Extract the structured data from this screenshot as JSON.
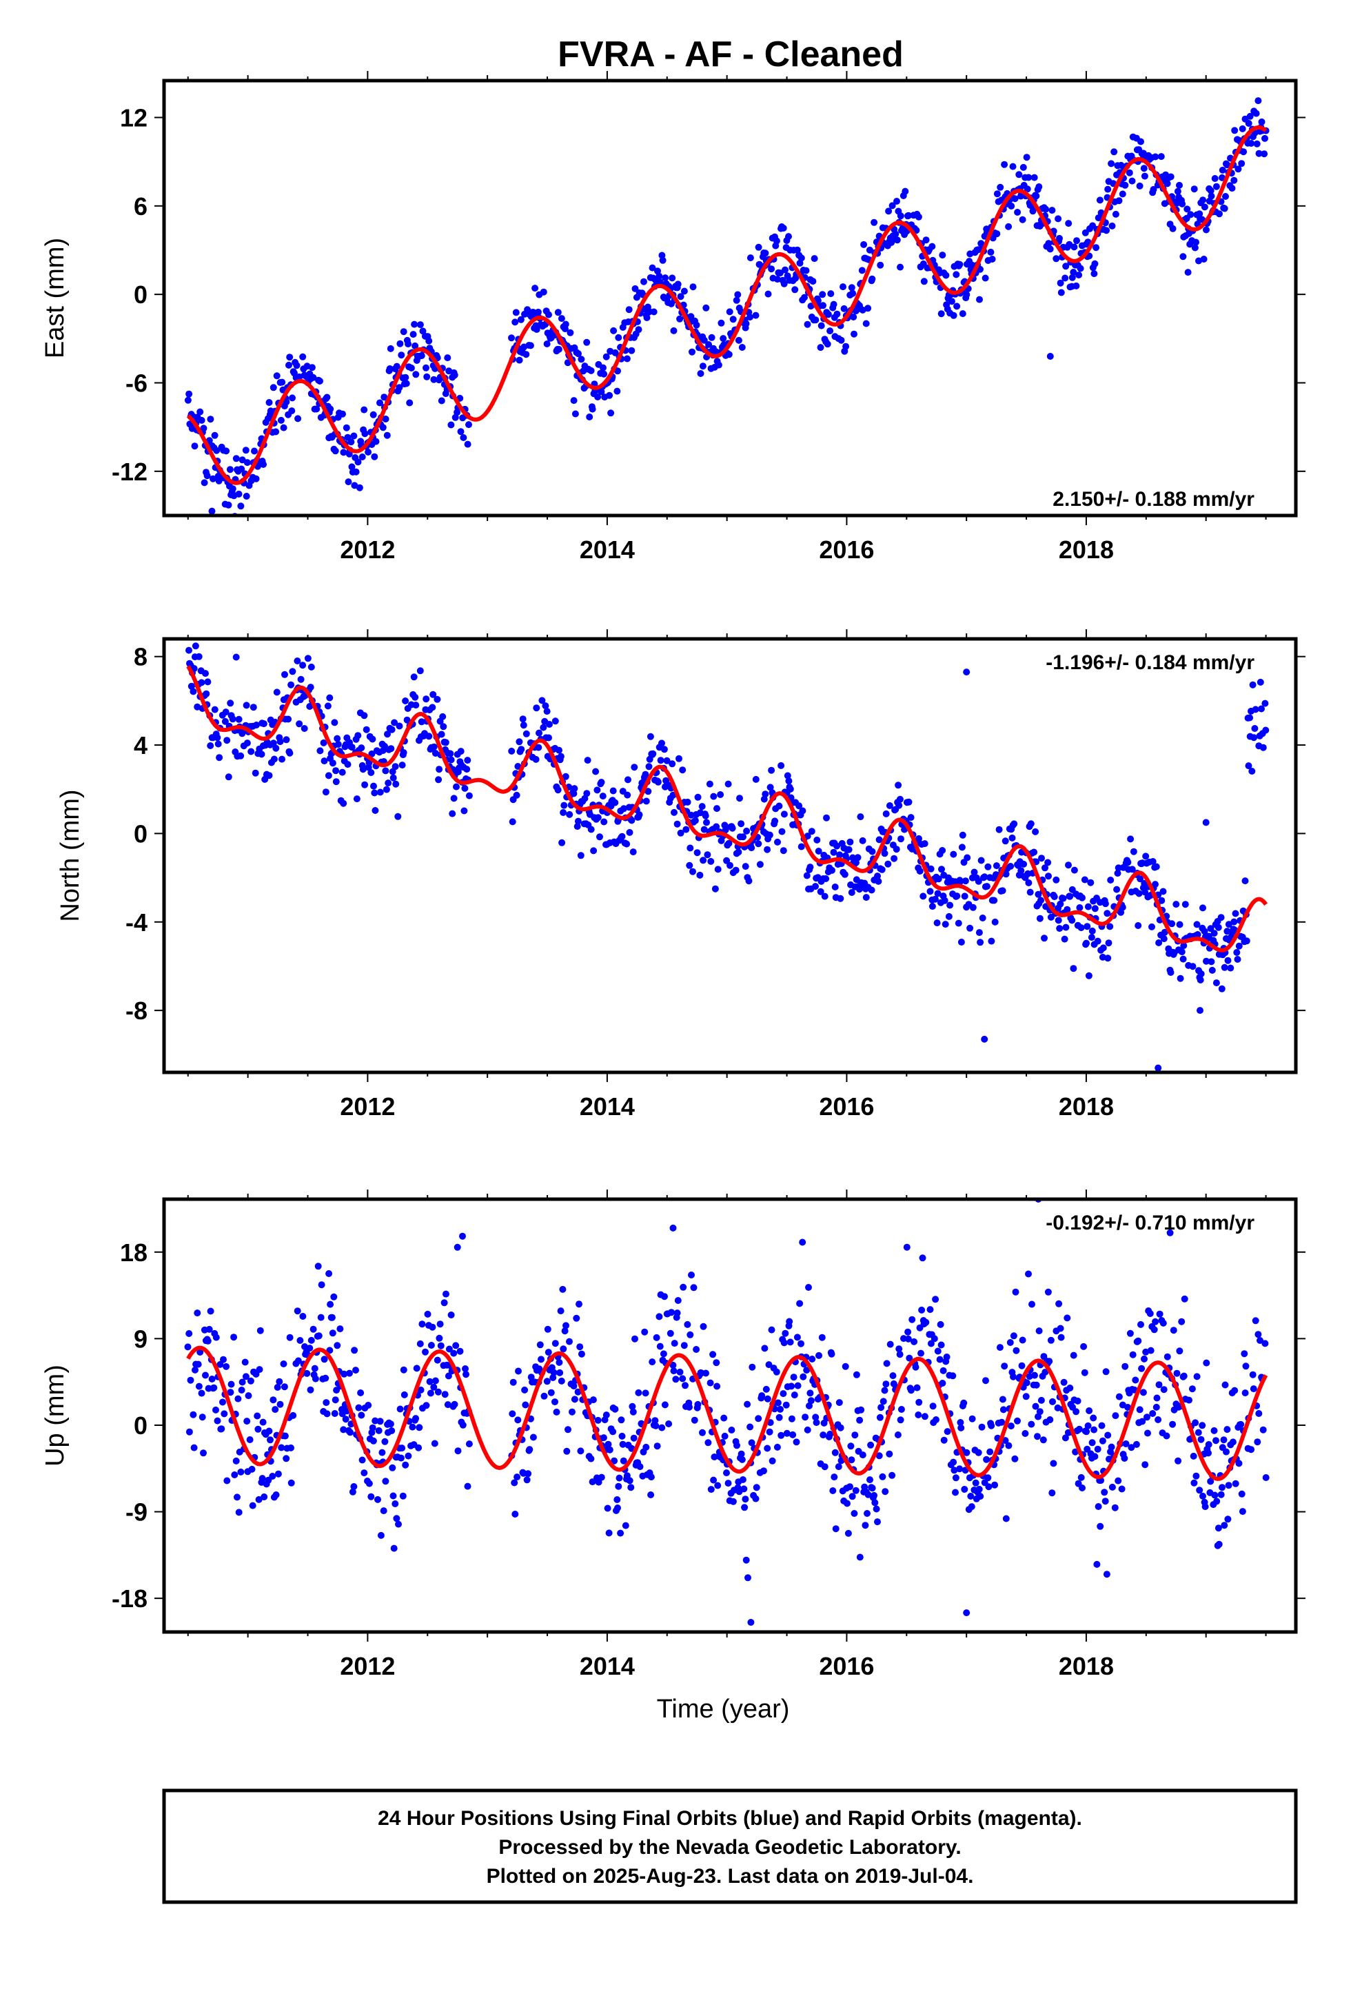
{
  "title": "FVRA  - AF - Cleaned",
  "colors": {
    "points": "#0000ff",
    "fit": "#ff0000",
    "frame": "#000000"
  },
  "chart_data": [
    {
      "type": "scatter",
      "ylabel": "East (mm)",
      "xlabel": "",
      "xlim": [
        2010.3,
        2019.75
      ],
      "ylim": [
        -15,
        14.5
      ],
      "xticks": [
        "2012",
        "2014",
        "2016",
        "2018"
      ],
      "yticks": [
        "12",
        "6",
        "0",
        "-6",
        "-12"
      ],
      "ytick_values": [
        12,
        6,
        0,
        -6,
        -12
      ],
      "rate": "2.150+/- 0.188 mm/yr",
      "rate_position": "bottom-right",
      "series": [
        {
          "name": "Final Orbits",
          "kind": "points",
          "trend": {
            "slope": 2.15,
            "offset": -1.1,
            "amplitude": 2.9,
            "peak_phase": 0.42
          },
          "x_range": [
            2010.5,
            2019.5
          ],
          "scatter_sd": 1.1,
          "count": 1250
        },
        {
          "name": "fit",
          "kind": "line",
          "trend": {
            "slope": 2.15,
            "offset": -1.1,
            "amplitude": 2.9,
            "peak_phase": 0.42
          },
          "x_range": [
            2010.5,
            2019.5
          ]
        }
      ],
      "gaps": [
        [
          2012.85,
          2013.2
        ]
      ],
      "outliers": [
        [
          2010.7,
          -14.7
        ],
        [
          2017.7,
          -4.2
        ],
        [
          2018.85,
          1.5
        ]
      ]
    },
    {
      "type": "scatter",
      "ylabel": "North (mm)",
      "xlabel": "",
      "xlim": [
        2010.3,
        2019.75
      ],
      "ylim": [
        -10.8,
        8.8
      ],
      "xticks": [
        "2012",
        "2014",
        "2016",
        "2018"
      ],
      "yticks": [
        "8",
        "4",
        "0",
        "-4",
        "-8"
      ],
      "ytick_values": [
        8,
        4,
        0,
        -4,
        -8
      ],
      "rate": "-1.196+/- 0.184 mm/yr",
      "rate_position": "top-right",
      "series": [
        {
          "name": "Final Orbits",
          "kind": "points",
          "trend": {
            "slope": -1.196,
            "offset": 0.55,
            "amplitude": 1.2,
            "peak_phase": 0.45,
            "semiannual": 0.6
          },
          "x_range": [
            2010.5,
            2019.5
          ],
          "scatter_sd": 0.95,
          "count": 1250
        },
        {
          "name": "fit",
          "kind": "line",
          "trend": {
            "slope": -1.196,
            "offset": 0.55,
            "amplitude": 1.2,
            "peak_phase": 0.45,
            "semiannual": 0.6
          },
          "x_range": [
            2010.5,
            2019.5
          ]
        }
      ],
      "gaps": [
        [
          2012.85,
          2013.2
        ]
      ],
      "outliers": [
        [
          2017.0,
          7.3
        ],
        [
          2017.15,
          -9.3
        ],
        [
          2018.6,
          -10.6
        ],
        [
          2019.0,
          0.5
        ],
        [
          2018.95,
          -8.0
        ]
      ]
    },
    {
      "type": "scatter",
      "ylabel": "Up (mm)",
      "xlabel": "Time (year)",
      "xlim": [
        2010.3,
        2019.75
      ],
      "ylim": [
        -21.5,
        23.5
      ],
      "xticks": [
        "2012",
        "2014",
        "2016",
        "2018"
      ],
      "yticks": [
        "18",
        "9",
        "0",
        "-9",
        "-18"
      ],
      "ytick_values": [
        18,
        9,
        0,
        -9,
        -18
      ],
      "rate": "-0.192+/- 0.710 mm/yr",
      "rate_position": "top-right",
      "series": [
        {
          "name": "Final Orbits",
          "kind": "points",
          "trend": {
            "slope": -0.192,
            "offset": 1.2,
            "amplitude": 6.0,
            "peak_phase": 0.6
          },
          "x_range": [
            2010.5,
            2019.5
          ],
          "scatter_sd": 4.2,
          "count": 1250
        },
        {
          "name": "fit",
          "kind": "line",
          "trend": {
            "slope": -0.192,
            "offset": 1.2,
            "amplitude": 6.0,
            "peak_phase": 0.6
          },
          "x_range": [
            2010.5,
            2019.5
          ]
        }
      ],
      "gaps": [
        [
          2012.85,
          2013.2
        ]
      ],
      "outliers": [
        [
          2014.55,
          20.5
        ],
        [
          2015.2,
          -20.5
        ],
        [
          2017.0,
          -19.5
        ],
        [
          2017.6,
          23.5
        ],
        [
          2012.75,
          18.5
        ],
        [
          2018.7,
          20.0
        ]
      ]
    }
  ],
  "footer": {
    "line1": "24 Hour Positions Using Final Orbits (blue) and Rapid Orbits (magenta).",
    "line2": "Processed by the Nevada Geodetic Laboratory.",
    "line3": "Plotted on 2025-Aug-23. Last data on 2019-Jul-04."
  }
}
